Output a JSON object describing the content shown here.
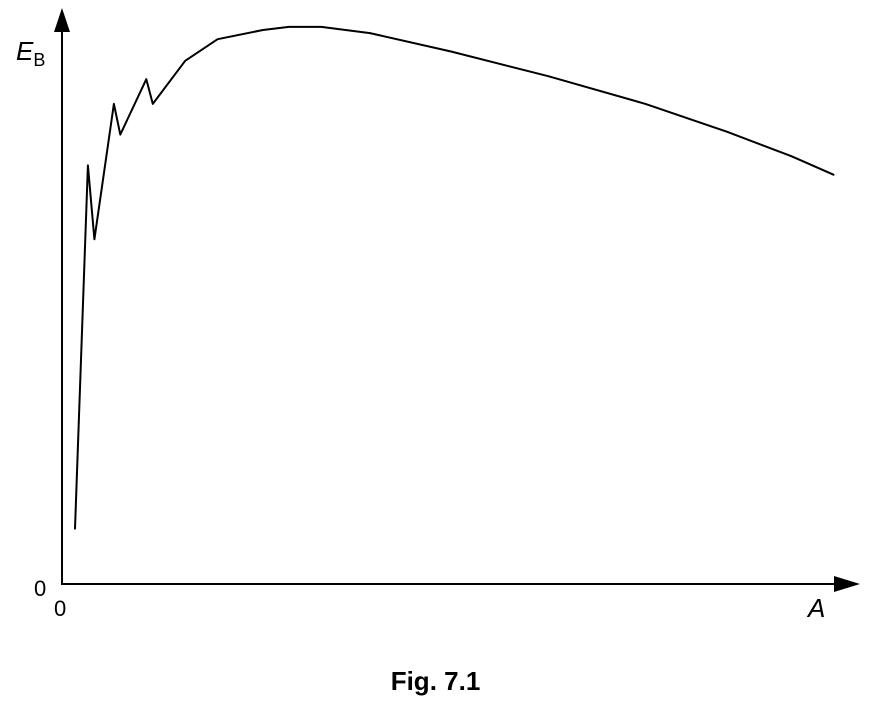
{
  "caption": "Fig. 7.1",
  "chart_data": {
    "type": "line",
    "title": "",
    "xlabel": "A",
    "ylabel_main": "E",
    "ylabel_sub": "B",
    "x_origin_label": "0",
    "y_origin_label": "0",
    "xlim": [
      0,
      240
    ],
    "ylim": [
      0,
      9
    ],
    "series": [
      {
        "points": [
          [
            4,
            0.9
          ],
          [
            8,
            6.8
          ],
          [
            10,
            5.6
          ],
          [
            16,
            7.8
          ],
          [
            18,
            7.3
          ],
          [
            26,
            8.2
          ],
          [
            28,
            7.8
          ],
          [
            38,
            8.5
          ],
          [
            48,
            8.85
          ],
          [
            62,
            9.0
          ],
          [
            70,
            9.05
          ],
          [
            80,
            9.05
          ],
          [
            95,
            8.95
          ],
          [
            120,
            8.65
          ],
          [
            150,
            8.25
          ],
          [
            180,
            7.8
          ],
          [
            205,
            7.35
          ],
          [
            225,
            6.95
          ],
          [
            238,
            6.65
          ]
        ]
      }
    ],
    "line_color": "#000000",
    "grid": false,
    "legend": false
  }
}
